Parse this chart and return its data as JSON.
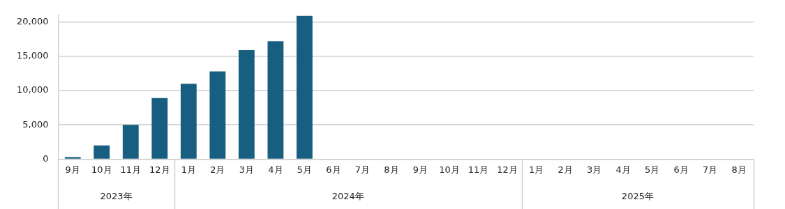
{
  "chart_data": {
    "type": "bar",
    "categories": [
      "9月",
      "10月",
      "11月",
      "12月",
      "1月",
      "2月",
      "3月",
      "4月",
      "5月",
      "6月",
      "7月",
      "8月",
      "9月",
      "10月",
      "11月",
      "12月",
      "1月",
      "2月",
      "3月",
      "4月",
      "5月",
      "6月",
      "7月",
      "8月"
    ],
    "values": [
      300,
      2000,
      5000,
      8900,
      11000,
      12800,
      15900,
      17200,
      20900,
      null,
      null,
      null,
      null,
      null,
      null,
      null,
      null,
      null,
      null,
      null,
      null,
      null,
      null,
      null
    ],
    "color": "#175e80",
    "ylim": [
      0,
      21000
    ],
    "yticks": [
      0,
      {
        "value": 5000,
        "label": "5,000"
      },
      {
        "value": 10000,
        "label": "10,000"
      },
      {
        "value": 15000,
        "label": "15,000"
      },
      {
        "value": 20000,
        "label": "20,000"
      }
    ],
    "grid": "y",
    "annotations": [
      "2023年",
      "2024年",
      "2025年"
    ]
  }
}
